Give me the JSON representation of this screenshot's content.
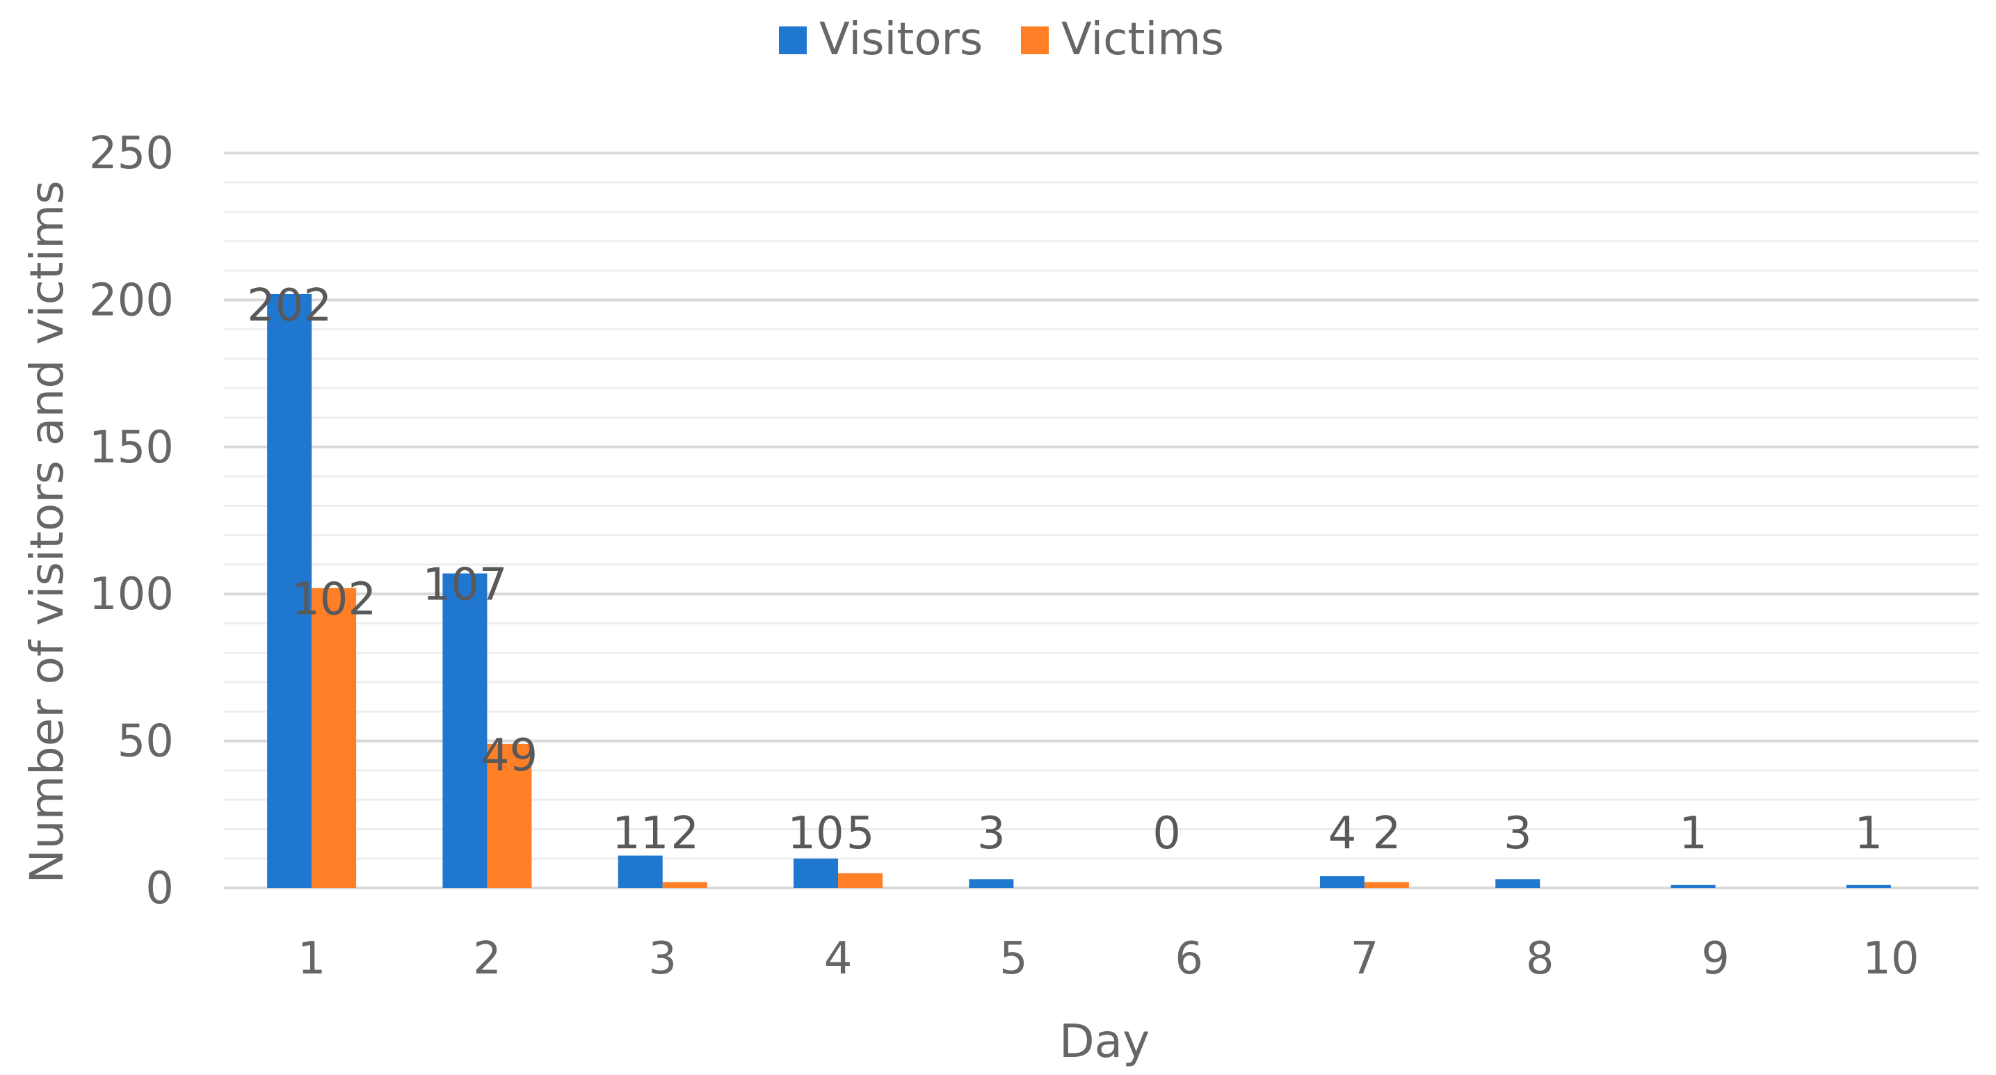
{
  "chart_data": {
    "type": "bar",
    "categories": [
      "1",
      "2",
      "3",
      "4",
      "5",
      "6",
      "7",
      "8",
      "9",
      "10"
    ],
    "series": [
      {
        "name": "Visitors",
        "values": [
          202,
          107,
          11,
          10,
          3,
          0,
          4,
          3,
          1,
          1
        ],
        "color": "#1f77d0"
      },
      {
        "name": "Victims",
        "values": [
          102,
          49,
          2,
          5,
          0,
          0,
          2,
          0,
          0,
          0
        ],
        "color": "#ff7f27"
      }
    ],
    "data_labels": [
      {
        "series": 0,
        "category": 0,
        "text": "202"
      },
      {
        "series": 1,
        "category": 0,
        "text": "102"
      },
      {
        "series": 0,
        "category": 1,
        "text": "107"
      },
      {
        "series": 1,
        "category": 1,
        "text": "49"
      },
      {
        "series": 0,
        "category": 2,
        "text": "11"
      },
      {
        "series": 1,
        "category": 2,
        "text": "2"
      },
      {
        "series": 0,
        "category": 3,
        "text": "10"
      },
      {
        "series": 1,
        "category": 3,
        "text": "5"
      },
      {
        "series": 0,
        "category": 4,
        "text": "3"
      },
      {
        "series": 0,
        "category": 5,
        "text": "0"
      },
      {
        "series": 0,
        "category": 6,
        "text": "4"
      },
      {
        "series": 1,
        "category": 6,
        "text": "2"
      },
      {
        "series": 0,
        "category": 7,
        "text": "3"
      },
      {
        "series": 0,
        "category": 8,
        "text": "1"
      },
      {
        "series": 0,
        "category": 9,
        "text": "1"
      }
    ],
    "title": "",
    "xlabel": "Day",
    "ylabel": "Number of visitors and victims",
    "ylim": [
      0,
      250
    ],
    "yticks": [
      0,
      50,
      100,
      150,
      200,
      250
    ],
    "grid": true,
    "legend": "top-center",
    "text_color": "#666666",
    "grid_color": "#d9d9d9"
  }
}
